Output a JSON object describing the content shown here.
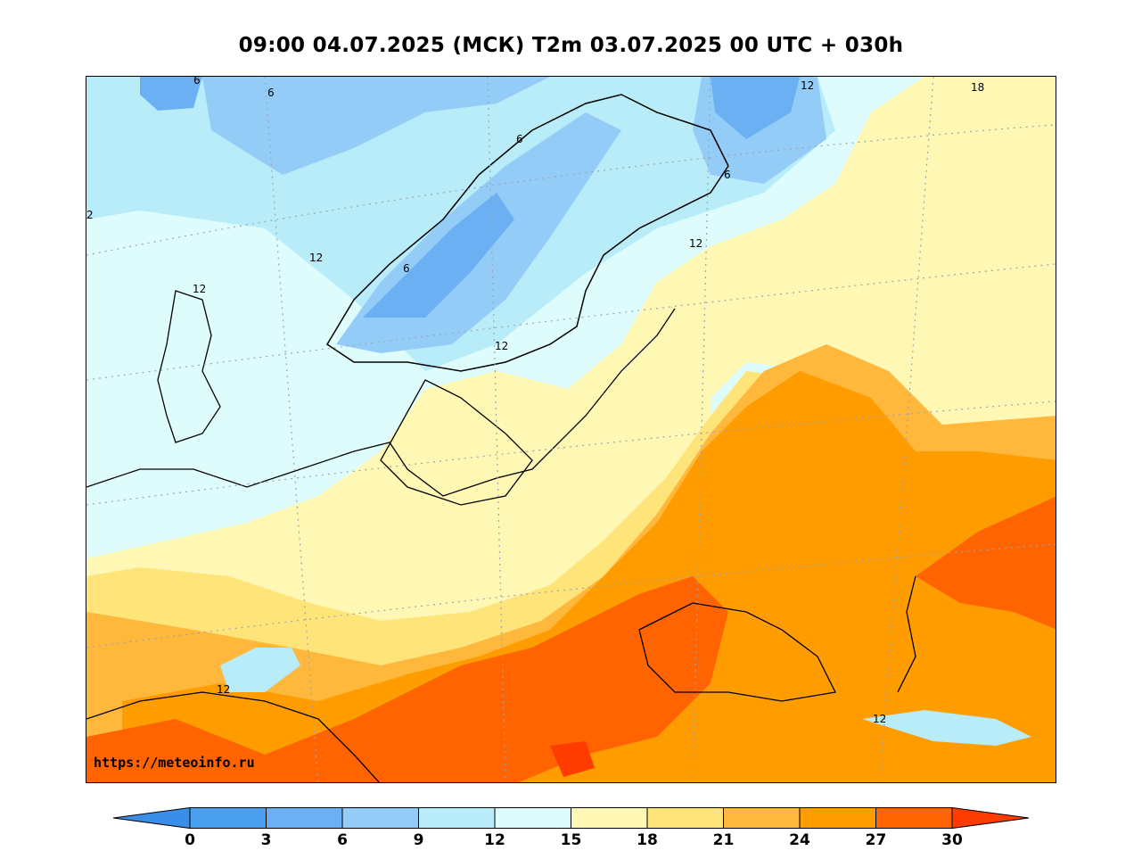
{
  "title": "09:00 04.07.2025 (МСК) T2m 03.07.2025 00 UTC + 030h",
  "watermark": "https://meteoinfo.ru",
  "colorbar": {
    "ticks": [
      "0",
      "3",
      "6",
      "9",
      "12",
      "15",
      "18",
      "21",
      "24",
      "27",
      "30"
    ],
    "band_colors": [
      "#4aa0ee",
      "#6ab0f2",
      "#94ccf8",
      "#b8ecf8",
      "#dffcfc",
      "#fff8b4",
      "#ffe47a",
      "#ffb83c",
      "#ff9c00",
      "#ff6400"
    ],
    "under_color": "#3a8ee8",
    "over_color": "#ff3c00"
  },
  "contour_labels": [
    {
      "text": "6"
    },
    {
      "text": "6"
    },
    {
      "text": "12"
    },
    {
      "text": "18"
    },
    {
      "text": "2"
    },
    {
      "text": "6"
    },
    {
      "text": "6"
    },
    {
      "text": "12"
    },
    {
      "text": "12"
    },
    {
      "text": "12"
    },
    {
      "text": "6"
    },
    {
      "text": "12"
    },
    {
      "text": "12"
    },
    {
      "text": "12"
    }
  ]
}
